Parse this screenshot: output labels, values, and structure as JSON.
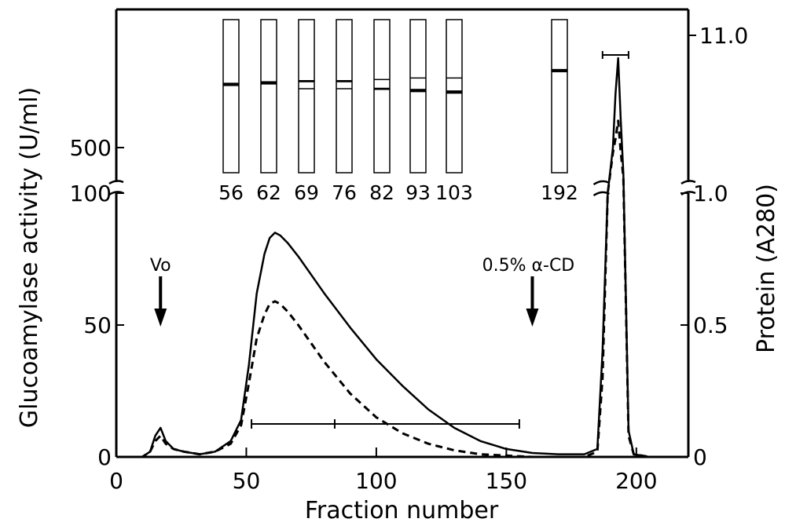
{
  "chart_data": {
    "type": "line",
    "xlabel": "Fraction number",
    "ylabel_left": "Glucoamylase activity (U/ml)",
    "ylabel_right": "Protein (A280)",
    "x_ticks": [
      "0",
      "50",
      "100",
      "150",
      "200"
    ],
    "y_left_ticks_lower": [
      "0",
      "50",
      "100"
    ],
    "y_left_ticks_upper": [
      "500"
    ],
    "y_right_ticks_lower": [
      "0",
      "0.5",
      "1.0"
    ],
    "y_right_ticks_upper": [
      "11.0"
    ],
    "xlim": [
      0,
      220
    ],
    "ylim_left_lower": [
      0,
      100
    ],
    "ylim_right_lower": [
      0,
      1.0
    ],
    "y_axes_broken": true,
    "series": [
      {
        "style": "solid",
        "x": [
          0,
          10,
          13,
          15,
          17,
          19,
          22,
          26,
          32,
          38,
          44,
          48,
          51,
          54,
          57,
          59,
          61,
          63,
          66,
          70,
          75,
          80,
          90,
          100,
          110,
          120,
          130,
          140,
          150,
          160,
          170,
          180,
          185,
          187,
          189,
          191,
          192,
          193,
          194,
          195,
          197,
          199,
          205,
          215
        ],
        "y": [
          0,
          0,
          2,
          8,
          11,
          6,
          3,
          2,
          1,
          2,
          6,
          14,
          35,
          62,
          77,
          83,
          85,
          84,
          81,
          76,
          69,
          62,
          49,
          37,
          27,
          18,
          11,
          6,
          3,
          1.5,
          1,
          1,
          3,
          40,
          100,
          500,
          620,
          700,
          560,
          200,
          10,
          1,
          0,
          0
        ]
      },
      {
        "style": "dashed",
        "x": [
          0,
          10,
          13,
          15,
          17,
          19,
          22,
          26,
          32,
          38,
          44,
          48,
          51,
          54,
          57,
          59,
          61,
          63,
          66,
          70,
          75,
          80,
          90,
          100,
          110,
          120,
          130,
          140,
          150,
          160,
          170,
          180,
          185,
          187,
          189,
          191,
          192,
          193,
          194,
          195,
          197,
          199,
          205,
          215
        ],
        "y": [
          0,
          0,
          2,
          6,
          8,
          5,
          3,
          2,
          1,
          2,
          5,
          12,
          28,
          45,
          54,
          58,
          59,
          58,
          55,
          50,
          43,
          36,
          24,
          15,
          9,
          5,
          2.5,
          1,
          0.5,
          0,
          0,
          0,
          2,
          30,
          100,
          440,
          520,
          560,
          450,
          150,
          8,
          1,
          0,
          0
        ]
      }
    ],
    "annotations": [
      {
        "text": "Vo",
        "x": 17
      },
      {
        "text": "0.5% α-CD",
        "x": 160
      }
    ],
    "pooled_range": {
      "from": 52,
      "to": 155,
      "mid": 84
    },
    "upper_pooled_range": {
      "from": 187,
      "to": 197
    },
    "gel_lanes": [
      {
        "label": "56",
        "bands": [
          {
            "pos": 0.42,
            "strength": 3
          }
        ]
      },
      {
        "label": "62",
        "bands": [
          {
            "pos": 0.41,
            "strength": 3
          }
        ]
      },
      {
        "label": "69",
        "bands": [
          {
            "pos": 0.4,
            "strength": 2
          },
          {
            "pos": 0.45,
            "strength": 1
          }
        ]
      },
      {
        "label": "76",
        "bands": [
          {
            "pos": 0.4,
            "strength": 2
          },
          {
            "pos": 0.45,
            "strength": 1
          }
        ]
      },
      {
        "label": "82",
        "bands": [
          {
            "pos": 0.39,
            "strength": 1
          },
          {
            "pos": 0.45,
            "strength": 2
          }
        ]
      },
      {
        "label": "93",
        "bands": [
          {
            "pos": 0.38,
            "strength": 1
          },
          {
            "pos": 0.46,
            "strength": 3
          }
        ]
      },
      {
        "label": "103",
        "bands": [
          {
            "pos": 0.38,
            "strength": 1
          },
          {
            "pos": 0.47,
            "strength": 3
          }
        ]
      },
      {
        "label": "192",
        "bands": [
          {
            "pos": 0.33,
            "strength": 3
          }
        ]
      }
    ]
  }
}
